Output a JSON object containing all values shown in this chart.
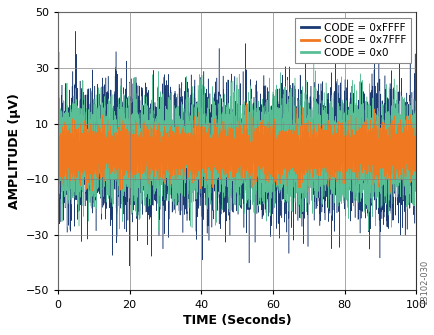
{
  "title": "",
  "xlabel": "TIME (Seconds)",
  "ylabel": "AMPLITUDE (μV)",
  "xlim": [
    0,
    100
  ],
  "ylim": [
    -50,
    50
  ],
  "xticks": [
    0,
    20,
    40,
    60,
    80,
    100
  ],
  "yticks": [
    -50,
    -30,
    -10,
    10,
    30,
    50
  ],
  "grid_color": "#808080",
  "bg_color": "#ffffff",
  "series": [
    {
      "label": "CODE = 0xFFFF",
      "color": "#1c3a72",
      "std": 11.0,
      "mean": 0.0,
      "linewidth": 0.35,
      "plot_order": 0
    },
    {
      "label": "CODE = 0x7FFF",
      "color": "#f07820",
      "std": 4.5,
      "mean": 0.0,
      "linewidth": 0.35,
      "plot_order": 2
    },
    {
      "label": "CODE = 0x0",
      "color": "#5abf96",
      "std": 9.0,
      "mean": 0.0,
      "linewidth": 0.35,
      "plot_order": 1
    }
  ],
  "n_points": 8000,
  "legend_fontsize": 7.5,
  "axis_label_fontsize": 9,
  "tick_fontsize": 8,
  "watermark": "13102-030",
  "watermark_fontsize": 6
}
